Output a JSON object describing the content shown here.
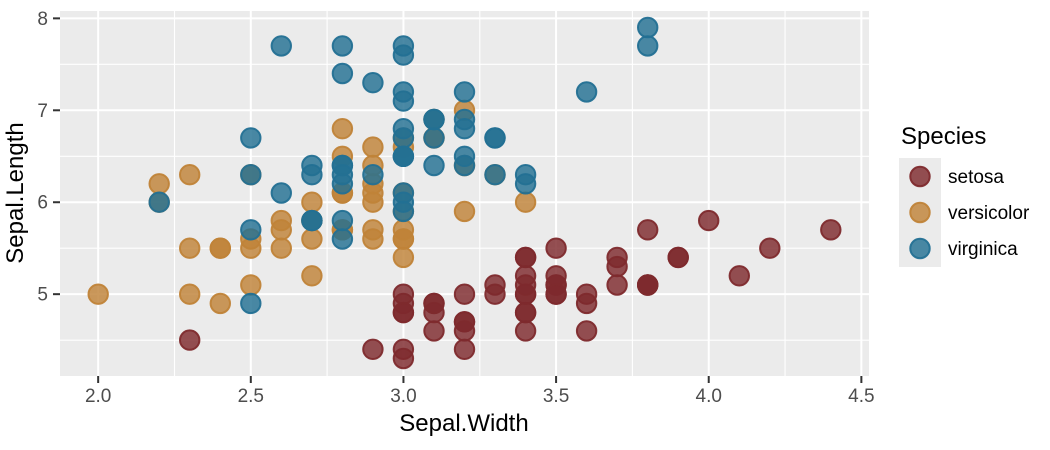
{
  "colors": {
    "panel_background": "#EBEBEB",
    "gridline": "#FFFFFF",
    "tick_mark": "#333333",
    "tick_label": "#4D4D4D",
    "axis_title": "#000000",
    "legend_key_background": "#EBEBEB"
  },
  "chart_data": {
    "type": "scatter",
    "title": "",
    "xlabel": "Sepal.Width",
    "ylabel": "Sepal.Length",
    "xlim": [
      1.875,
      4.525
    ],
    "ylim": [
      4.11,
      8.08
    ],
    "x_ticks": [
      2.0,
      2.5,
      3.0,
      3.5,
      4.0,
      4.5
    ],
    "x_tick_labels": [
      "2.0",
      "2.5",
      "3.0",
      "3.5",
      "4.0",
      "4.5"
    ],
    "y_ticks": [
      5,
      6,
      7,
      8
    ],
    "y_tick_labels": [
      "5",
      "6",
      "7",
      "8"
    ],
    "x_minor": [
      2.25,
      2.75,
      3.25,
      3.75,
      4.25
    ],
    "y_minor": [
      4.5,
      5.5,
      6.5,
      7.5
    ],
    "grid": true,
    "legend_title": "Species",
    "legend_position": "right",
    "point_alpha": 0.82,
    "series": [
      {
        "name": "setosa",
        "color": "#7E2A2D",
        "points": [
          [
            3.5,
            5.1
          ],
          [
            3.0,
            4.9
          ],
          [
            3.2,
            4.7
          ],
          [
            3.1,
            4.6
          ],
          [
            3.6,
            5.0
          ],
          [
            3.9,
            5.4
          ],
          [
            3.4,
            4.6
          ],
          [
            3.4,
            5.0
          ],
          [
            2.9,
            4.4
          ],
          [
            3.1,
            4.9
          ],
          [
            3.7,
            5.4
          ],
          [
            3.4,
            4.8
          ],
          [
            3.0,
            4.8
          ],
          [
            3.0,
            4.3
          ],
          [
            4.0,
            5.8
          ],
          [
            4.4,
            5.7
          ],
          [
            3.9,
            5.4
          ],
          [
            3.5,
            5.1
          ],
          [
            3.8,
            5.7
          ],
          [
            3.8,
            5.1
          ],
          [
            3.4,
            5.4
          ],
          [
            3.7,
            5.1
          ],
          [
            3.6,
            4.6
          ],
          [
            3.3,
            5.1
          ],
          [
            3.4,
            4.8
          ],
          [
            3.0,
            5.0
          ],
          [
            3.4,
            5.0
          ],
          [
            3.5,
            5.2
          ],
          [
            3.4,
            5.2
          ],
          [
            3.2,
            4.7
          ],
          [
            3.1,
            4.8
          ],
          [
            3.4,
            5.4
          ],
          [
            4.1,
            5.2
          ],
          [
            4.2,
            5.5
          ],
          [
            3.1,
            4.9
          ],
          [
            3.2,
            5.0
          ],
          [
            3.5,
            5.5
          ],
          [
            3.6,
            4.9
          ],
          [
            3.0,
            4.4
          ],
          [
            3.4,
            5.1
          ],
          [
            3.5,
            5.0
          ],
          [
            2.3,
            4.5
          ],
          [
            3.2,
            4.4
          ],
          [
            3.5,
            5.0
          ],
          [
            3.8,
            5.1
          ],
          [
            3.0,
            4.8
          ],
          [
            3.8,
            5.1
          ],
          [
            3.2,
            4.6
          ],
          [
            3.7,
            5.3
          ],
          [
            3.3,
            5.0
          ]
        ]
      },
      {
        "name": "versicolor",
        "color": "#C08338",
        "points": [
          [
            3.2,
            7.0
          ],
          [
            3.2,
            6.4
          ],
          [
            3.1,
            6.9
          ],
          [
            2.3,
            5.5
          ],
          [
            2.8,
            6.5
          ],
          [
            2.8,
            5.7
          ],
          [
            3.3,
            6.3
          ],
          [
            2.4,
            4.9
          ],
          [
            2.9,
            6.6
          ],
          [
            2.7,
            5.2
          ],
          [
            2.0,
            5.0
          ],
          [
            3.0,
            5.9
          ],
          [
            2.2,
            6.0
          ],
          [
            2.9,
            6.1
          ],
          [
            2.9,
            5.6
          ],
          [
            3.1,
            6.7
          ],
          [
            3.0,
            5.6
          ],
          [
            2.7,
            5.8
          ],
          [
            2.2,
            6.2
          ],
          [
            2.5,
            5.6
          ],
          [
            3.2,
            5.9
          ],
          [
            2.8,
            6.1
          ],
          [
            2.5,
            6.3
          ],
          [
            2.8,
            6.1
          ],
          [
            2.9,
            6.4
          ],
          [
            3.0,
            6.6
          ],
          [
            2.8,
            6.8
          ],
          [
            3.0,
            6.7
          ],
          [
            2.9,
            6.0
          ],
          [
            2.6,
            5.7
          ],
          [
            2.4,
            5.5
          ],
          [
            2.4,
            5.5
          ],
          [
            2.7,
            5.8
          ],
          [
            2.7,
            6.0
          ],
          [
            3.0,
            5.4
          ],
          [
            3.4,
            6.0
          ],
          [
            3.1,
            6.7
          ],
          [
            2.3,
            6.3
          ],
          [
            3.0,
            5.6
          ],
          [
            2.5,
            5.5
          ],
          [
            2.6,
            5.5
          ],
          [
            3.0,
            6.1
          ],
          [
            2.6,
            5.8
          ],
          [
            2.3,
            5.0
          ],
          [
            2.7,
            5.6
          ],
          [
            3.0,
            5.7
          ],
          [
            2.9,
            5.7
          ],
          [
            2.9,
            6.2
          ],
          [
            2.5,
            5.1
          ],
          [
            2.8,
            5.7
          ]
        ]
      },
      {
        "name": "virginica",
        "color": "#237093",
        "points": [
          [
            3.3,
            6.3
          ],
          [
            2.7,
            5.8
          ],
          [
            3.0,
            7.1
          ],
          [
            2.9,
            6.3
          ],
          [
            3.0,
            6.5
          ],
          [
            3.0,
            7.6
          ],
          [
            2.5,
            4.9
          ],
          [
            2.9,
            7.3
          ],
          [
            2.5,
            6.7
          ],
          [
            3.6,
            7.2
          ],
          [
            3.2,
            6.5
          ],
          [
            2.7,
            6.4
          ],
          [
            3.0,
            6.8
          ],
          [
            2.5,
            5.7
          ],
          [
            2.8,
            5.8
          ],
          [
            3.2,
            6.4
          ],
          [
            3.0,
            6.5
          ],
          [
            3.8,
            7.7
          ],
          [
            2.6,
            7.7
          ],
          [
            2.2,
            6.0
          ],
          [
            3.2,
            6.9
          ],
          [
            2.8,
            5.6
          ],
          [
            2.8,
            7.7
          ],
          [
            2.7,
            6.3
          ],
          [
            3.3,
            6.7
          ],
          [
            3.2,
            7.2
          ],
          [
            2.8,
            6.2
          ],
          [
            3.0,
            6.1
          ],
          [
            2.8,
            6.4
          ],
          [
            3.0,
            7.2
          ],
          [
            2.8,
            7.4
          ],
          [
            3.8,
            7.9
          ],
          [
            2.8,
            6.4
          ],
          [
            2.8,
            6.3
          ],
          [
            2.6,
            6.1
          ],
          [
            3.0,
            7.7
          ],
          [
            3.4,
            6.3
          ],
          [
            3.1,
            6.4
          ],
          [
            3.0,
            6.0
          ],
          [
            3.1,
            6.9
          ],
          [
            3.1,
            6.7
          ],
          [
            3.1,
            6.9
          ],
          [
            2.7,
            5.8
          ],
          [
            3.2,
            6.8
          ],
          [
            3.3,
            6.7
          ],
          [
            3.0,
            6.7
          ],
          [
            2.5,
            6.3
          ],
          [
            3.0,
            6.5
          ],
          [
            3.4,
            6.2
          ],
          [
            3.0,
            5.9
          ]
        ]
      }
    ]
  }
}
